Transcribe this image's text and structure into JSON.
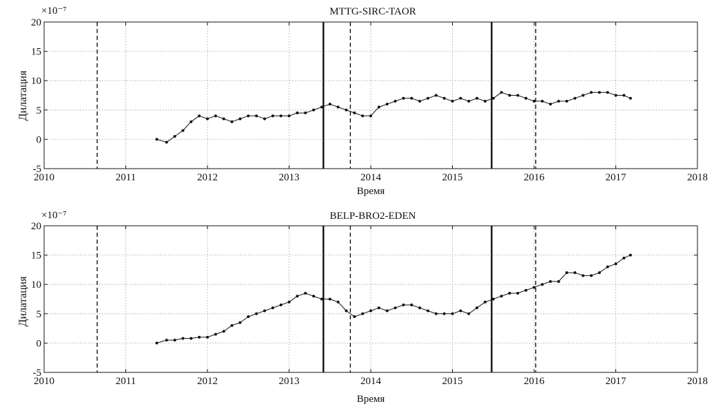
{
  "chart_data": [
    {
      "type": "line",
      "title": "MTTG-SIRC-TAOR",
      "xlabel": "Время",
      "ylabel": "Дилатация",
      "y_multiplier": "×10⁻⁷",
      "xlim": [
        2010,
        2018
      ],
      "ylim": [
        -5,
        20
      ],
      "xticks": [
        2010,
        2011,
        2012,
        2013,
        2014,
        2015,
        2016,
        2017,
        2018
      ],
      "yticks": [
        -5,
        0,
        5,
        10,
        15,
        20
      ],
      "grid": true,
      "marker": "dot",
      "color": "#111111",
      "vlines": [
        {
          "x": 2010.65,
          "style": "dashed"
        },
        {
          "x": 2013.42,
          "style": "solid"
        },
        {
          "x": 2013.75,
          "style": "dashed"
        },
        {
          "x": 2015.48,
          "style": "solid"
        },
        {
          "x": 2016.02,
          "style": "dashed"
        }
      ],
      "series": [
        {
          "x": [
            2011.38,
            2011.5,
            2011.6,
            2011.7,
            2011.8,
            2011.9,
            2012.0,
            2012.1,
            2012.2,
            2012.3,
            2012.4,
            2012.5,
            2012.6,
            2012.7,
            2012.8,
            2012.9,
            2013.0,
            2013.1,
            2013.2,
            2013.3,
            2013.4,
            2013.5,
            2013.6,
            2013.7,
            2013.8,
            2013.9,
            2014.0,
            2014.1,
            2014.2,
            2014.3,
            2014.4,
            2014.5,
            2014.6,
            2014.7,
            2014.8,
            2014.9,
            2015.0,
            2015.1,
            2015.2,
            2015.3,
            2015.4,
            2015.5,
            2015.6,
            2015.7,
            2015.8,
            2015.9,
            2016.0,
            2016.1,
            2016.2,
            2016.3,
            2016.4,
            2016.5,
            2016.6,
            2016.7,
            2016.8,
            2016.9,
            2017.0,
            2017.1,
            2017.18
          ],
          "y": [
            0,
            -0.5,
            0.5,
            1.5,
            3,
            4,
            3.5,
            4,
            3.5,
            3,
            3.5,
            4,
            4,
            3.5,
            4,
            4,
            4,
            4.5,
            4.5,
            5,
            5.5,
            6,
            5.5,
            5,
            4.5,
            4,
            4,
            5.5,
            6,
            6.5,
            7,
            7,
            6.5,
            7,
            7.5,
            7,
            6.5,
            7,
            6.5,
            7,
            6.5,
            7,
            8,
            7.5,
            7.5,
            7,
            6.5,
            6.5,
            6,
            6.5,
            6.5,
            7,
            7.5,
            8,
            8,
            8,
            7.5,
            7.5,
            7
          ]
        }
      ]
    },
    {
      "type": "line",
      "title": "BELP-BRO2-EDEN",
      "xlabel": "Время",
      "ylabel": "Дилатация",
      "y_multiplier": "×10⁻⁷",
      "xlim": [
        2010,
        2018
      ],
      "ylim": [
        -5,
        20
      ],
      "xticks": [
        2010,
        2011,
        2012,
        2013,
        2014,
        2015,
        2016,
        2017,
        2018
      ],
      "yticks": [
        -5,
        0,
        5,
        10,
        15,
        20
      ],
      "grid": true,
      "marker": "dot",
      "color": "#111111",
      "vlines": [
        {
          "x": 2010.65,
          "style": "dashed"
        },
        {
          "x": 2013.42,
          "style": "solid"
        },
        {
          "x": 2013.75,
          "style": "dashed"
        },
        {
          "x": 2015.48,
          "style": "solid"
        },
        {
          "x": 2016.02,
          "style": "dashed"
        }
      ],
      "series": [
        {
          "x": [
            2011.38,
            2011.5,
            2011.6,
            2011.7,
            2011.8,
            2011.9,
            2012.0,
            2012.1,
            2012.2,
            2012.3,
            2012.4,
            2012.5,
            2012.6,
            2012.7,
            2012.8,
            2012.9,
            2013.0,
            2013.1,
            2013.2,
            2013.3,
            2013.4,
            2013.5,
            2013.6,
            2013.7,
            2013.8,
            2013.9,
            2014.0,
            2014.1,
            2014.2,
            2014.3,
            2014.4,
            2014.5,
            2014.6,
            2014.7,
            2014.8,
            2014.9,
            2015.0,
            2015.1,
            2015.2,
            2015.3,
            2015.4,
            2015.5,
            2015.6,
            2015.7,
            2015.8,
            2015.9,
            2016.0,
            2016.1,
            2016.2,
            2016.3,
            2016.4,
            2016.5,
            2016.6,
            2016.7,
            2016.8,
            2016.9,
            2017.0,
            2017.1,
            2017.18
          ],
          "y": [
            0,
            0.5,
            0.5,
            0.8,
            0.8,
            1,
            1,
            1.5,
            2,
            3,
            3.5,
            4.5,
            5,
            5.5,
            6,
            6.5,
            7,
            8,
            8.5,
            8,
            7.5,
            7.5,
            7,
            5.5,
            4.5,
            5,
            5.5,
            6,
            5.5,
            6,
            6.5,
            6.5,
            6,
            5.5,
            5,
            5,
            5,
            5.5,
            5,
            6,
            7,
            7.5,
            8,
            8.5,
            8.5,
            9,
            9.5,
            10,
            10.5,
            10.5,
            12,
            12,
            11.5,
            11.5,
            12,
            13,
            13.5,
            14.5,
            15
          ]
        }
      ]
    }
  ]
}
